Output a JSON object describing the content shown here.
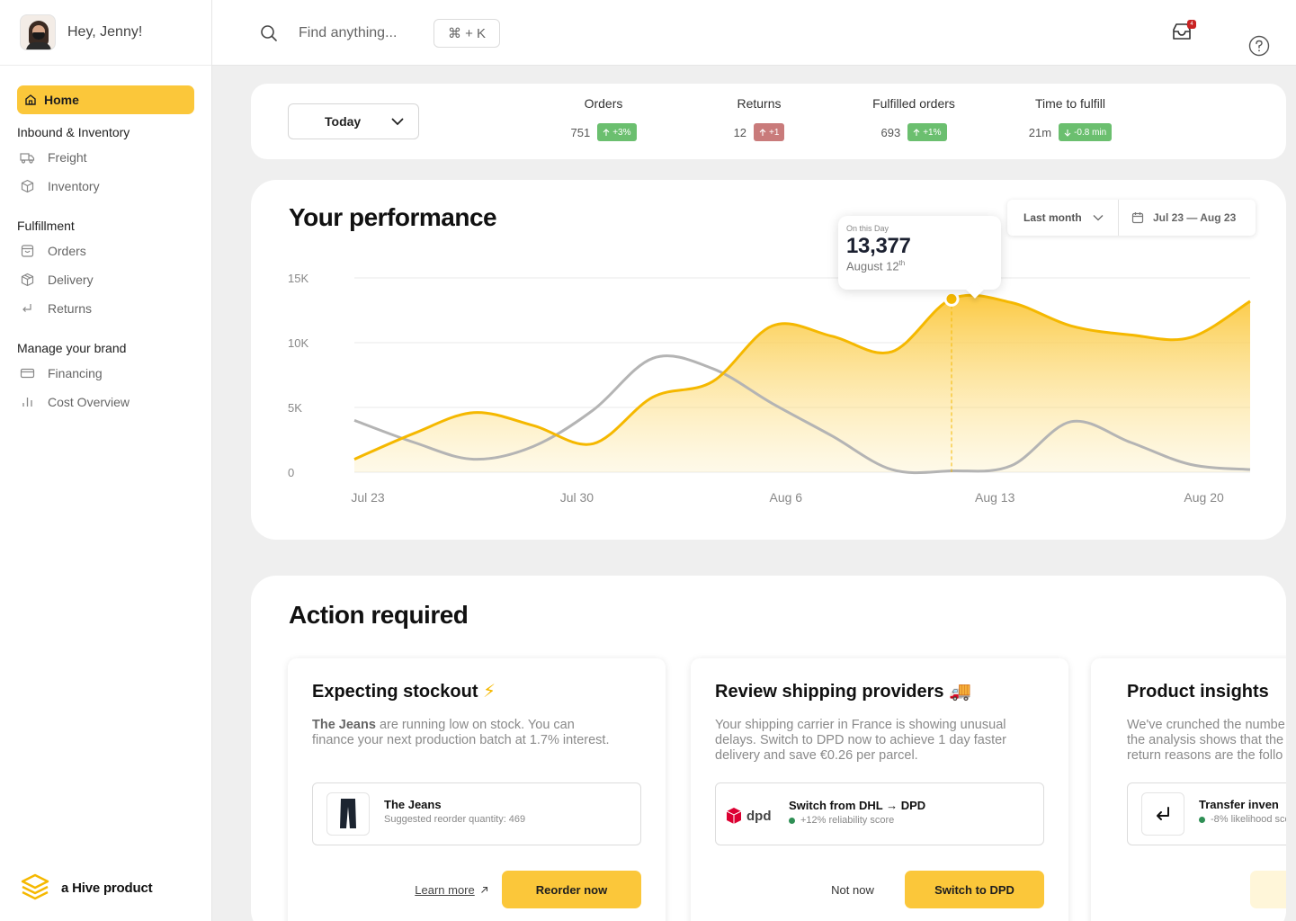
{
  "user": {
    "greeting": "Hey, Jenny!"
  },
  "sidebar": {
    "home": "Home",
    "sections": [
      {
        "title": "Inbound & Inventory",
        "items": [
          {
            "label": "Freight",
            "icon": "truck-icon"
          },
          {
            "label": "Inventory",
            "icon": "box-icon"
          }
        ]
      },
      {
        "title": "Fulfillment",
        "items": [
          {
            "label": "Orders",
            "icon": "bag-icon"
          },
          {
            "label": "Delivery",
            "icon": "package-icon"
          },
          {
            "label": "Returns",
            "icon": "return-icon"
          }
        ]
      },
      {
        "title": "Manage your brand",
        "items": [
          {
            "label": "Financing",
            "icon": "card-icon"
          },
          {
            "label": "Cost Overview",
            "icon": "bar-chart-icon"
          }
        ]
      }
    ],
    "brand": "a Hive product"
  },
  "topbar": {
    "search_placeholder": "Find anything...",
    "shortcut": "⌘ + K",
    "inbox_count": "4"
  },
  "stats": {
    "period": "Today",
    "items": [
      {
        "label": "Orders",
        "value": "751",
        "change": "+3%",
        "trend": "up",
        "color": "#6bbf6f"
      },
      {
        "label": "Returns",
        "value": "12",
        "change": "+1",
        "trend": "up",
        "color": "#c97b7b"
      },
      {
        "label": "Fulfilled orders",
        "value": "693",
        "change": "+1%",
        "trend": "up",
        "color": "#6bbf6f"
      },
      {
        "label": "Time to fulfill",
        "value": "21m",
        "change": "-0.8 min",
        "trend": "down",
        "color": "#6bbf6f"
      }
    ]
  },
  "performance": {
    "title": "Your performance",
    "range_preset": "Last month",
    "range_dates": "Jul 23 — Aug 23",
    "tooltip": {
      "label": "On this Day",
      "value": "13,377",
      "date": "August 12",
      "date_suffix": "th"
    }
  },
  "chart_data": {
    "type": "area",
    "ylim": [
      0,
      15000
    ],
    "y_ticks": [
      "0",
      "5K",
      "10K",
      "15K"
    ],
    "y_tick_values": [
      0,
      5000,
      10000,
      15000
    ],
    "x_ticks": [
      "Jul 23",
      "Jul 30",
      "Aug 6",
      "Aug 13",
      "Aug 20"
    ],
    "x": [
      "Jul 23",
      "Jul 25",
      "Jul 27",
      "Jul 29",
      "Jul 31",
      "Aug 2",
      "Aug 4",
      "Aug 6",
      "Aug 8",
      "Aug 10",
      "Aug 12",
      "Aug 14",
      "Aug 16",
      "Aug 18",
      "Aug 20",
      "Aug 23"
    ],
    "series": [
      {
        "color": "#f5b800",
        "values": [
          1000,
          3000,
          4600,
          3600,
          2200,
          5800,
          7000,
          11300,
          10500,
          9300,
          13377,
          13100,
          11300,
          10600,
          10400,
          13200
        ]
      },
      {
        "color": "#b4b4b4",
        "values": [
          4000,
          2300,
          1000,
          2000,
          4800,
          8800,
          8000,
          5300,
          2800,
          200,
          100,
          500,
          3900,
          2300,
          600,
          200
        ]
      }
    ],
    "highlight_index": 10,
    "grid": true
  },
  "actions": {
    "title": "Action required",
    "cards": [
      {
        "title": "Expecting stockout",
        "emoji": "⚡",
        "desc_bold": "The Jeans",
        "desc_lines": [
          " are running low on stock. You can",
          "finance your next production batch at 1.7% interest."
        ],
        "item_name": "The Jeans",
        "item_sub": "Suggested reorder quantity: 469",
        "secondary": "Learn more",
        "primary": "Reorder now"
      },
      {
        "title": "Review shipping providers",
        "emoji": "🚚",
        "desc_lines": [
          "Your shipping carrier in France is showing unusual",
          "delays. Switch to DPD now to achieve 1 day faster",
          "delivery and save €0.26 per parcel."
        ],
        "item_logo": "dpd",
        "item_name": "Switch from DHL → DPD",
        "item_sub": "+12% reliability score",
        "secondary": "Not now",
        "primary": "Switch to DPD"
      },
      {
        "title": "Product insights",
        "desc_lines": [
          "We've crunched the numbe",
          "the analysis shows that the",
          "return reasons are the follo"
        ],
        "item_name": "Transfer inven",
        "item_sub": "-8% likelihood sco"
      }
    ]
  }
}
